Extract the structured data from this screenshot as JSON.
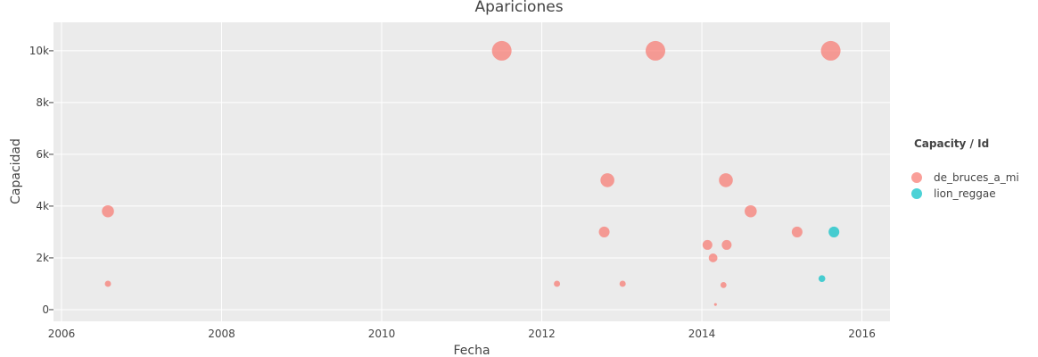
{
  "chart_data": {
    "type": "scatter",
    "title": "Apariciones",
    "xlabel": "Fecha",
    "ylabel": "Capacidad",
    "xlim": [
      2005.9,
      2016.35
    ],
    "ylim": [
      -450,
      11100
    ],
    "x_ticks": [
      2006,
      2008,
      2010,
      2012,
      2014,
      2016
    ],
    "x_tick_labels": [
      "2006",
      "2008",
      "2010",
      "2012",
      "2014",
      "2016"
    ],
    "y_ticks": [
      0,
      2000,
      4000,
      6000,
      8000,
      10000
    ],
    "y_tick_labels": [
      "0",
      "2k",
      "4k",
      "6k",
      "8k",
      "10k"
    ],
    "grid": true,
    "legend": {
      "title": "Capacity / Id",
      "position": "right"
    },
    "series": [
      {
        "name": "de_bruces_a_mi",
        "color": "#f8766d",
        "points": [
          {
            "x": 2006.58,
            "y": 3800
          },
          {
            "x": 2006.58,
            "y": 1000
          },
          {
            "x": 2011.5,
            "y": 10000
          },
          {
            "x": 2012.19,
            "y": 1000
          },
          {
            "x": 2012.78,
            "y": 3000
          },
          {
            "x": 2012.82,
            "y": 5000
          },
          {
            "x": 2013.01,
            "y": 1000
          },
          {
            "x": 2013.42,
            "y": 10000
          },
          {
            "x": 2014.07,
            "y": 2500
          },
          {
            "x": 2014.14,
            "y": 2000
          },
          {
            "x": 2014.17,
            "y": 200
          },
          {
            "x": 2014.27,
            "y": 950
          },
          {
            "x": 2014.3,
            "y": 5000
          },
          {
            "x": 2014.31,
            "y": 2500
          },
          {
            "x": 2014.61,
            "y": 3800
          },
          {
            "x": 2015.19,
            "y": 3000
          },
          {
            "x": 2015.61,
            "y": 10000
          }
        ]
      },
      {
        "name": "lion_reggae",
        "color": "#00bfc4",
        "points": [
          {
            "x": 2015.5,
            "y": 1200
          },
          {
            "x": 2015.65,
            "y": 3000
          }
        ]
      }
    ]
  }
}
